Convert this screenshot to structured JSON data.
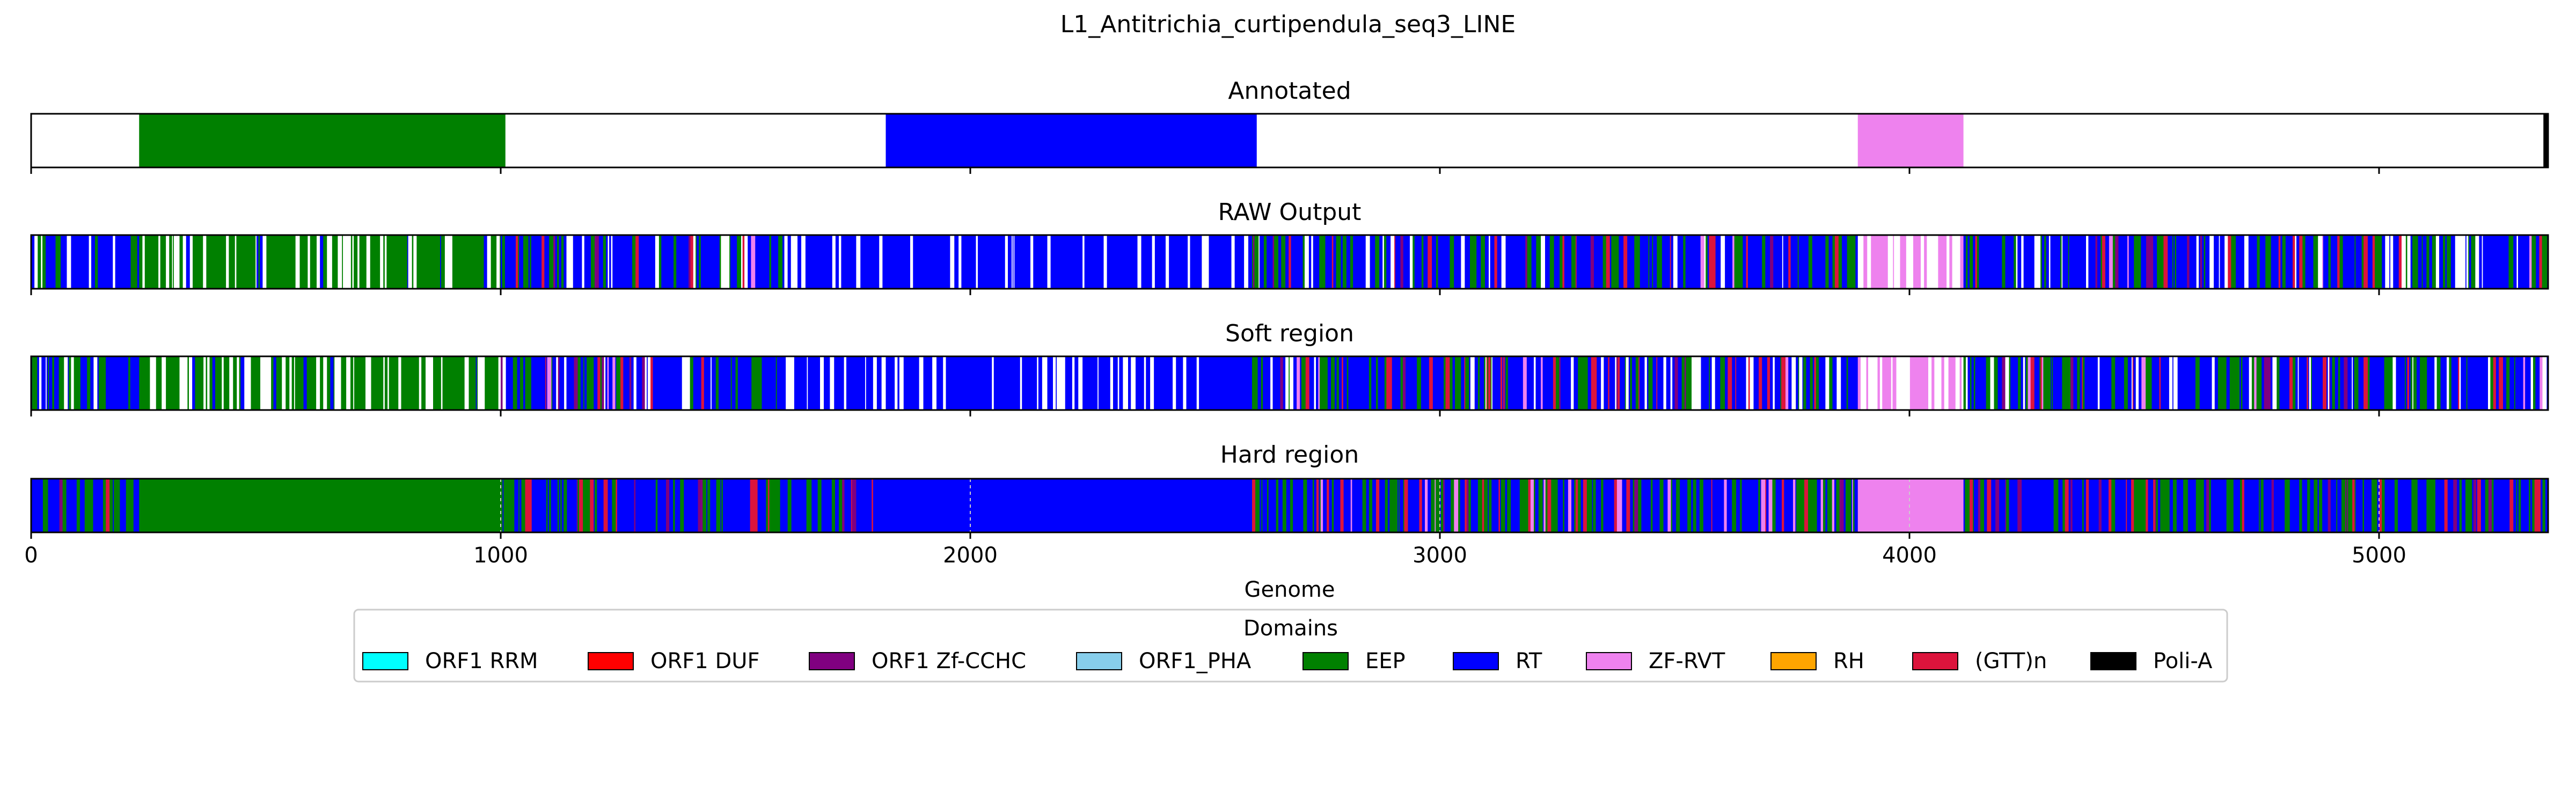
{
  "chart_data": {
    "type": "bar",
    "title": "L1_Antitrichia_curtipendula_seq3_LINE",
    "xlabel": "Genome",
    "xlim": [
      0,
      5360
    ],
    "x_ticks": [
      0,
      1000,
      2000,
      3000,
      4000,
      5000
    ],
    "x_tick_labels": [
      "0",
      "1000",
      "2000",
      "3000",
      "4000",
      "5000"
    ],
    "grid": false,
    "legend": {
      "title": "Domains",
      "placement": "bottom-center",
      "entries": [
        {
          "name": "ORF1 RRM",
          "color": "#00FFFF"
        },
        {
          "name": "ORF1 DUF",
          "color": "#FF0000"
        },
        {
          "name": "ORF1 Zf-CCHC",
          "color": "#800080"
        },
        {
          "name": "ORF1_PHA",
          "color": "#87CEEB"
        },
        {
          "name": "EEP",
          "color": "#008000"
        },
        {
          "name": "RT",
          "color": "#0000FF"
        },
        {
          "name": "ZF-RVT",
          "color": "#EE82EE"
        },
        {
          "name": "RH",
          "color": "#FFA500"
        },
        {
          "name": "(GTT)n",
          "color": "#DC143C"
        },
        {
          "name": "Poli-A",
          "color": "#000000"
        }
      ]
    },
    "panels": [
      {
        "title": "Annotated",
        "segments": [
          {
            "domain": "EEP",
            "start": 230,
            "end": 1010
          },
          {
            "domain": "RT",
            "start": 1820,
            "end": 2610
          },
          {
            "domain": "ZF-RVT",
            "start": 3890,
            "end": 4115
          },
          {
            "domain": "Poli-A",
            "start": 5350,
            "end": 5360
          }
        ]
      },
      {
        "title": "RAW Output",
        "regions": [
          {
            "start": 0,
            "end": 230,
            "domain": "RT",
            "mix": "blue-green-white"
          },
          {
            "start": 230,
            "end": 1000,
            "domain": "EEP",
            "mix": "green-white"
          },
          {
            "start": 1000,
            "end": 1600,
            "domain": "RT",
            "mix": "blue-green-red-white"
          },
          {
            "start": 1600,
            "end": 2600,
            "domain": "RT",
            "mix": "blue-white"
          },
          {
            "start": 2600,
            "end": 3890,
            "domain": "RT",
            "mix": "blue-green-red-white"
          },
          {
            "start": 3890,
            "end": 4115,
            "domain": "ZF-RVT",
            "mix": "violet-white"
          },
          {
            "start": 4115,
            "end": 5360,
            "domain": "RT",
            "mix": "blue-green-red-white"
          }
        ]
      },
      {
        "title": "Soft region",
        "regions": [
          {
            "start": 0,
            "end": 230,
            "domain": "RT",
            "mix": "blue-green-white"
          },
          {
            "start": 230,
            "end": 1000,
            "domain": "EEP",
            "mix": "green-white"
          },
          {
            "start": 1000,
            "end": 1600,
            "domain": "RT",
            "mix": "blue-green-red-white"
          },
          {
            "start": 1600,
            "end": 2600,
            "domain": "RT",
            "mix": "blue-white"
          },
          {
            "start": 2600,
            "end": 3890,
            "domain": "RT",
            "mix": "blue-green-red-white"
          },
          {
            "start": 3890,
            "end": 4115,
            "domain": "ZF-RVT",
            "mix": "violet-white"
          },
          {
            "start": 4115,
            "end": 5360,
            "domain": "RT",
            "mix": "blue-green-red-white"
          }
        ]
      },
      {
        "title": "Hard region",
        "regions": [
          {
            "start": 0,
            "end": 230,
            "domain": "RT",
            "mix": "blue-green-red"
          },
          {
            "start": 230,
            "end": 1000,
            "domain": "EEP",
            "mix": "solid"
          },
          {
            "start": 1000,
            "end": 1800,
            "domain": "RT",
            "mix": "blue-green-red"
          },
          {
            "start": 1800,
            "end": 2600,
            "domain": "RT",
            "mix": "solid"
          },
          {
            "start": 2600,
            "end": 3890,
            "domain": "RT",
            "mix": "blue-green-red-violet"
          },
          {
            "start": 3890,
            "end": 4115,
            "domain": "ZF-RVT",
            "mix": "solid"
          },
          {
            "start": 4115,
            "end": 5360,
            "domain": "RT",
            "mix": "blue-green-red"
          }
        ]
      }
    ]
  }
}
